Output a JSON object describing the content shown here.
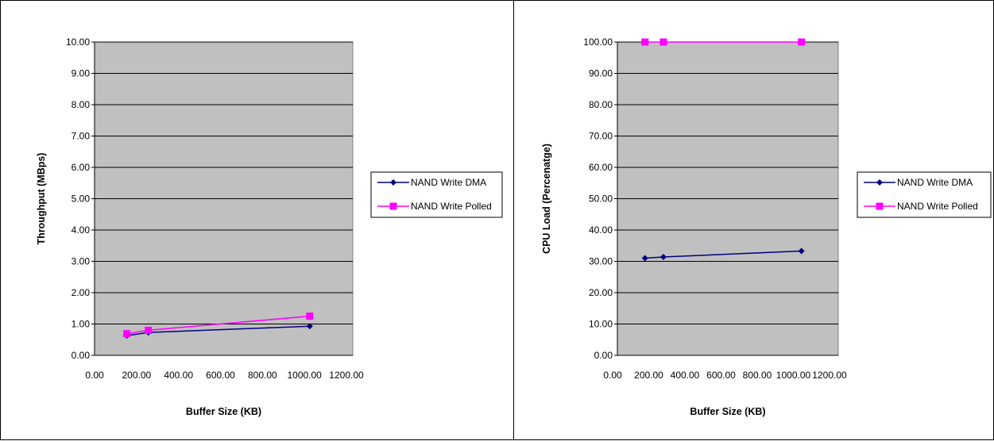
{
  "chart_data": [
    {
      "type": "line",
      "title": "",
      "xlabel": "Buffer Size (KB)",
      "ylabel": "Throughput (MBps)",
      "xlim": [
        0,
        1200
      ],
      "ylim": [
        0,
        10
      ],
      "xticks": [
        "0.00",
        "200.00",
        "400.00",
        "600.00",
        "800.00",
        "1000.00",
        "1200.00"
      ],
      "yticks": [
        "0.00",
        "1.00",
        "2.00",
        "3.00",
        "4.00",
        "5.00",
        "6.00",
        "7.00",
        "8.00",
        "9.00",
        "10.00"
      ],
      "grid": true,
      "legend_position": "right",
      "plot_background": "#c0c0c0",
      "series": [
        {
          "name": "NAND Write DMA",
          "color": "#000080",
          "marker": "diamond",
          "x": [
            150,
            250,
            1000
          ],
          "y": [
            0.63,
            0.73,
            0.93
          ]
        },
        {
          "name": "NAND Write Polled",
          "color": "#ff00ff",
          "marker": "square",
          "x": [
            150,
            250,
            1000
          ],
          "y": [
            0.69,
            0.8,
            1.25
          ]
        }
      ]
    },
    {
      "type": "line",
      "title": "",
      "xlabel": "Buffer Size (KB)",
      "ylabel": "CPU Load (Percenatge)",
      "xlim": [
        0,
        1200
      ],
      "ylim": [
        0,
        100
      ],
      "xticks": [
        "0.00",
        "200.00",
        "400.00",
        "600.00",
        "800.00",
        "1000.00",
        "1200.00"
      ],
      "yticks": [
        "0.00",
        "10.00",
        "20.00",
        "30.00",
        "40.00",
        "50.00",
        "60.00",
        "70.00",
        "80.00",
        "90.00",
        "100.00"
      ],
      "grid": true,
      "legend_position": "right",
      "plot_background": "#c0c0c0",
      "series": [
        {
          "name": "NAND Write DMA",
          "color": "#000080",
          "marker": "diamond",
          "x": [
            150,
            250,
            1000
          ],
          "y": [
            31.0,
            31.4,
            33.3
          ]
        },
        {
          "name": "NAND Write Polled",
          "color": "#ff00ff",
          "marker": "square",
          "x": [
            150,
            250,
            1000
          ],
          "y": [
            100,
            100,
            100
          ]
        }
      ]
    }
  ]
}
